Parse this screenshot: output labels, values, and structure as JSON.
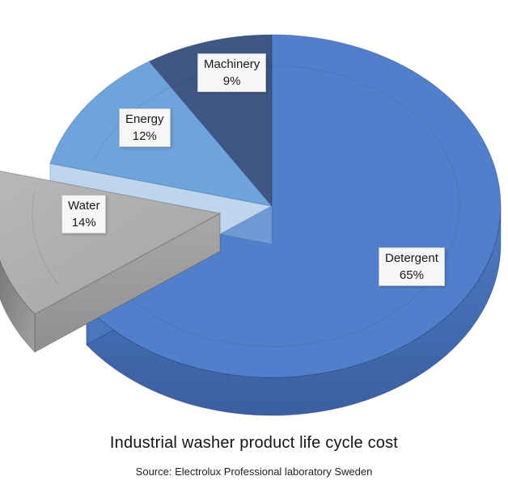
{
  "chart_data": {
    "type": "pie",
    "style": "3d-exploded",
    "title": "Industrial washer product life cycle cost",
    "source": "Source: Electrolux Professional laboratory Sweden",
    "start_angle_deg": 0,
    "direction": "clockwise",
    "legend": "none",
    "slices": [
      {
        "name": "Detergent",
        "value": 65,
        "pct_label": "65%",
        "color": "#527FCB",
        "exploded": false
      },
      {
        "name": "Water",
        "value": 14,
        "pct_label": "14%",
        "color": "#ABABAB",
        "exploded": true
      },
      {
        "name": "Energy",
        "value": 12,
        "pct_label": "12%",
        "color": "#6FA3DB",
        "exploded": false
      },
      {
        "name": "Machinery",
        "value": 9,
        "pct_label": "9%",
        "color": "#3E5784",
        "exploded": false
      }
    ]
  }
}
